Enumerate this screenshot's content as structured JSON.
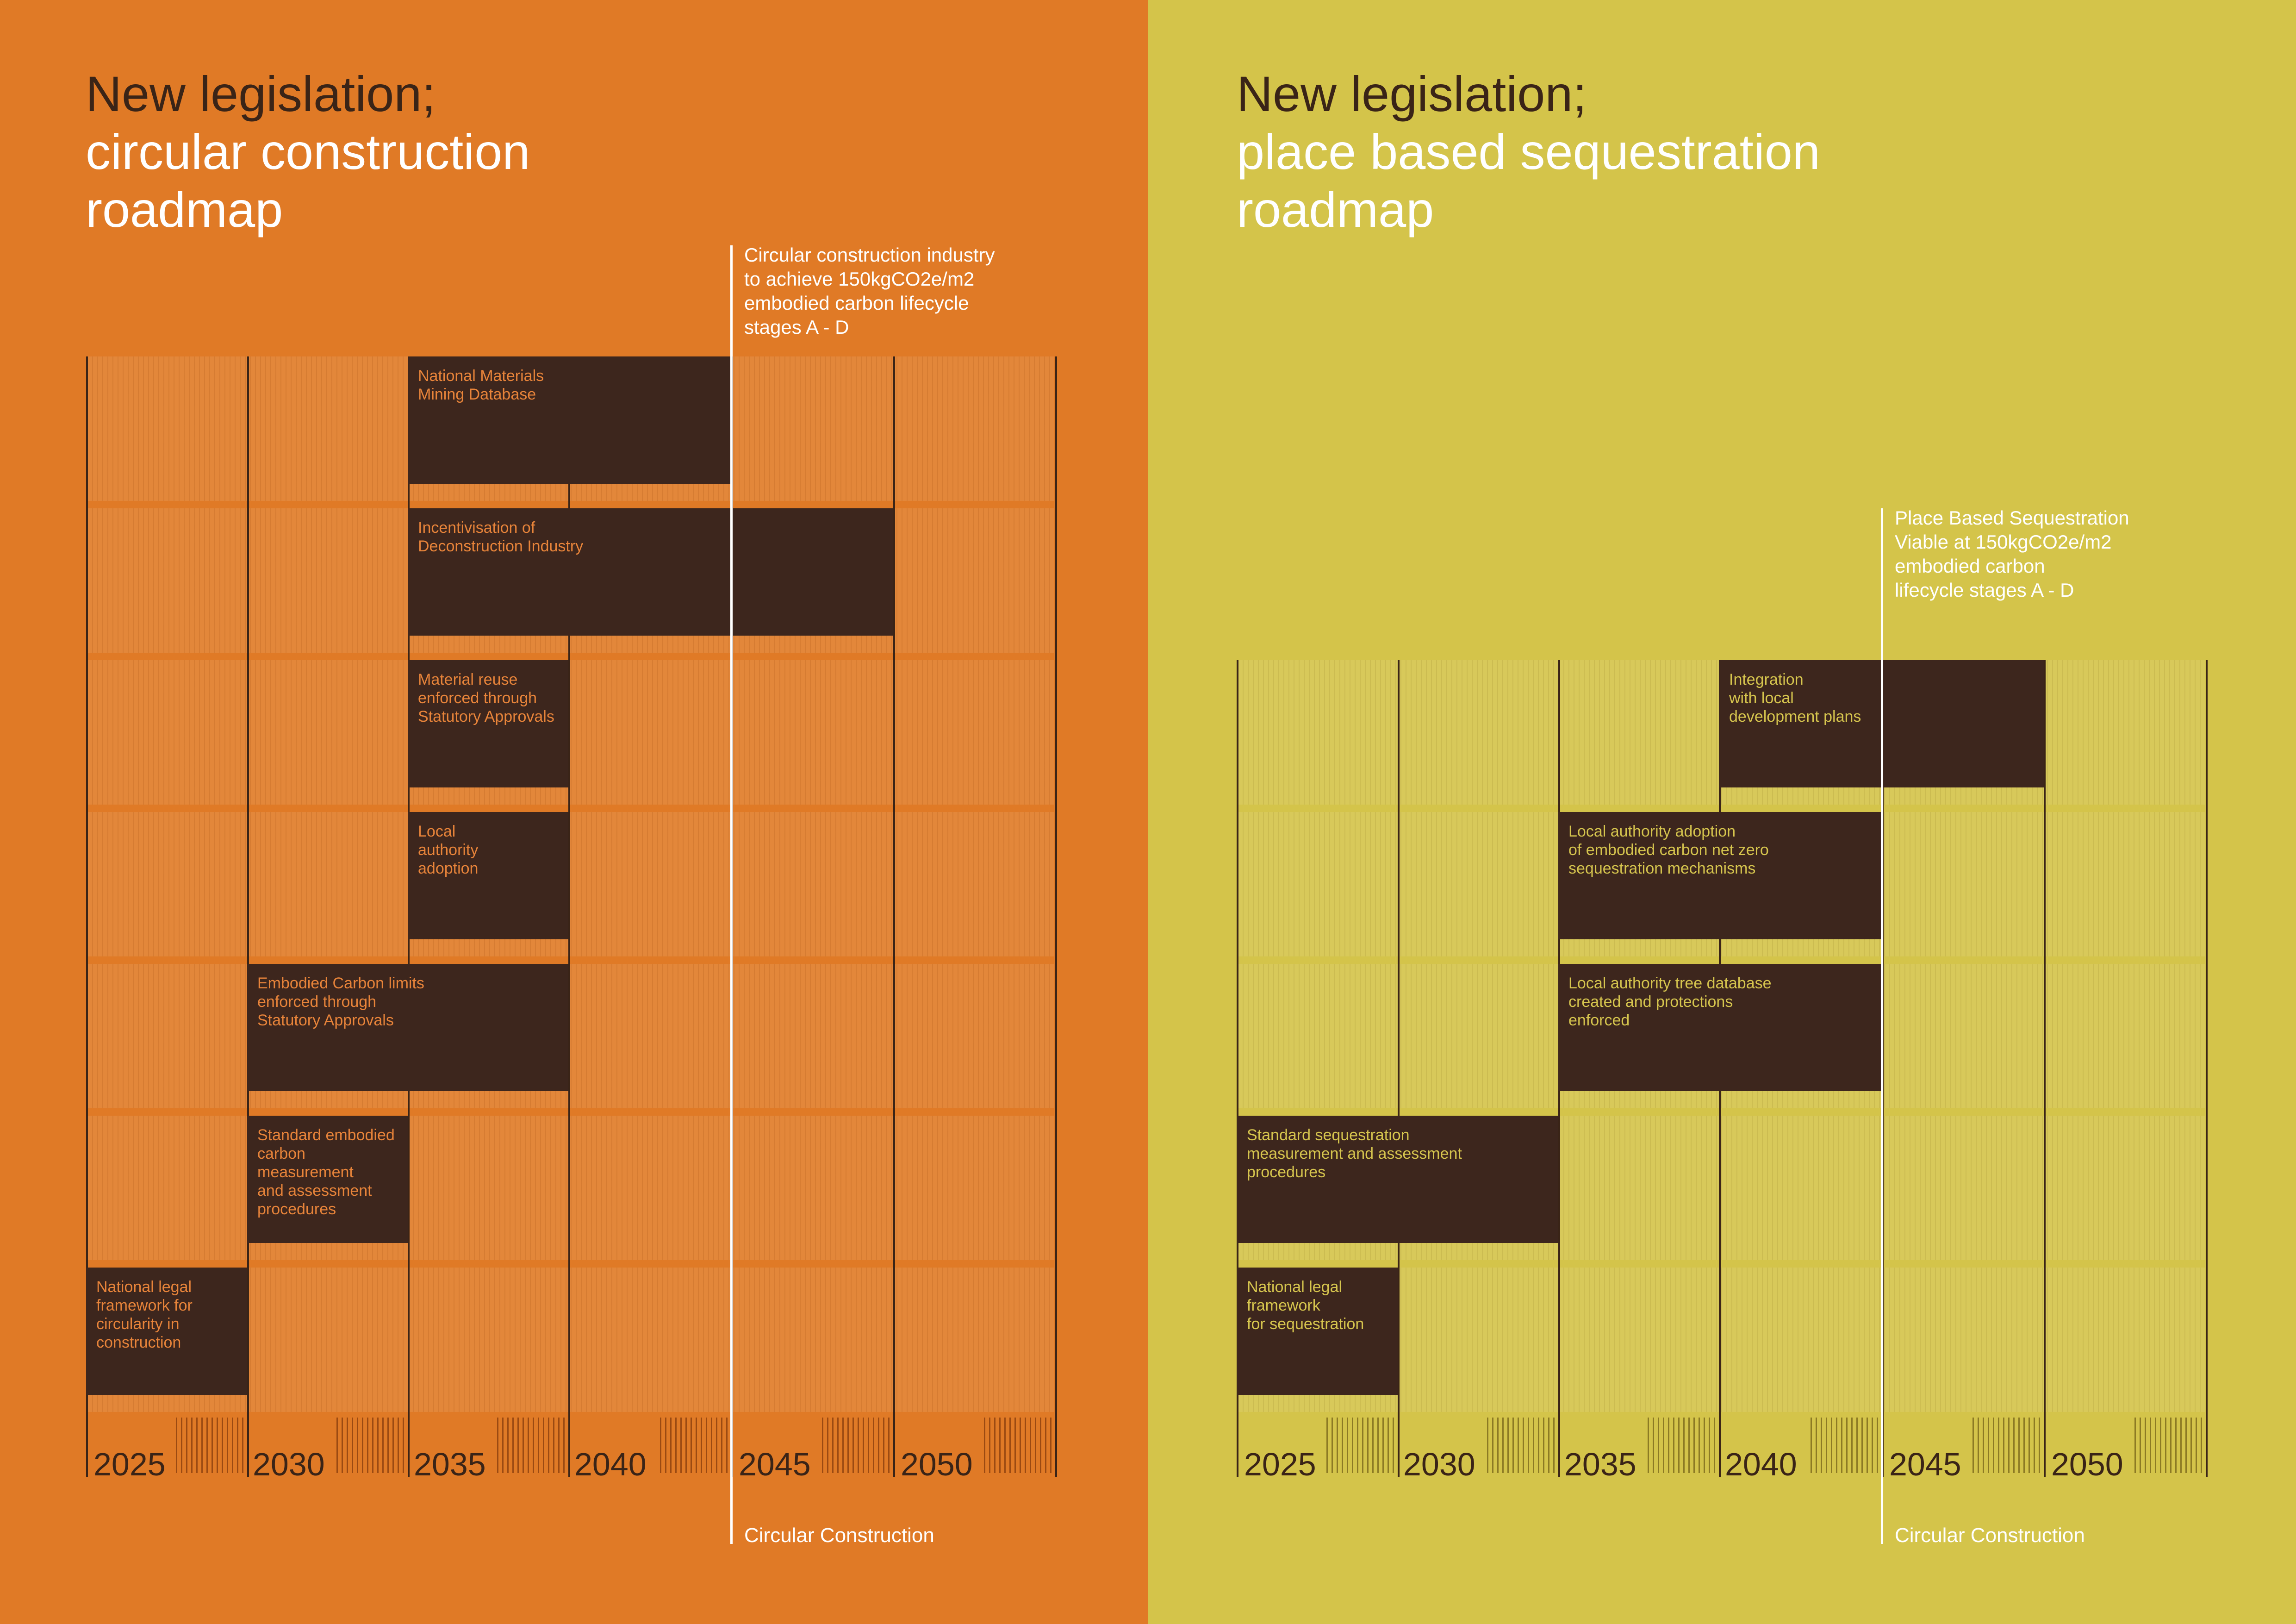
{
  "left": {
    "title": [
      "New legislation;",
      "circular construction",
      "roadmap"
    ],
    "years": [
      "2025",
      "2030",
      "2035",
      "2040",
      "2045",
      "2050"
    ],
    "milestone": {
      "text": "Circular construction industry\nto achieve 150kgCO2e/m2\nembodied carbon lifecycle\nstages A - D",
      "bottom_label": "Circular Construction"
    },
    "bars": [
      {
        "label": "National Materials\nMining Database"
      },
      {
        "label": "Incentivisation of\nDeconstruction Industry"
      },
      {
        "label": "Material reuse\nenforced through\nStatutory Approvals"
      },
      {
        "label": "Local\nauthority\nadoption"
      },
      {
        "label": "Embodied Carbon limits\nenforced through\nStatutory Approvals"
      },
      {
        "label": "Standard embodied\ncarbon\nmeasurement\nand assessment\nprocedures"
      },
      {
        "label": "National legal\nframework for\ncircularity in\nconstruction"
      }
    ]
  },
  "right": {
    "title": [
      "New legislation;",
      "place based sequestration",
      "roadmap"
    ],
    "years": [
      "2025",
      "2030",
      "2035",
      "2040",
      "2045",
      "2050"
    ],
    "milestone": {
      "text": "Place Based Sequestration\nViable at 150kgCO2e/m2\nembodied carbon\nlifecycle stages A - D",
      "bottom_label": "Circular Construction"
    },
    "bars": [
      {
        "label": "Integration\nwith local\ndevelopment plans"
      },
      {
        "label": "Local authority adoption\nof embodied carbon net zero\nsequestration mechanisms"
      },
      {
        "label": "Local authority tree database\ncreated and protections\nenforced"
      },
      {
        "label": "Standard sequestration\nmeasurement and assessment\nprocedures"
      },
      {
        "label": "National legal\nframework\nfor sequestration"
      }
    ]
  }
}
